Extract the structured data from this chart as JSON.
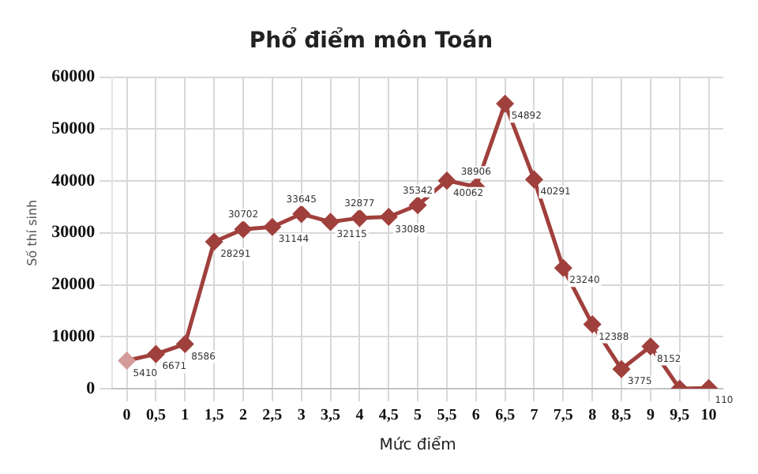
{
  "chart_data": {
    "type": "line",
    "title": "Phổ điểm môn Toán",
    "xlabel": "Mức điểm",
    "ylabel": "Số thí sinh",
    "categories": [
      "0",
      "0,5",
      "1",
      "1,5",
      "2",
      "2,5",
      "3",
      "3,5",
      "4",
      "4,5",
      "5",
      "5,5",
      "6",
      "6,5",
      "7",
      "7,5",
      "8",
      "8,5",
      "9",
      "9,5",
      "10"
    ],
    "series": [
      {
        "color": "#a0403c",
        "values": [
          5410,
          6671,
          8586,
          28291,
          30702,
          31144,
          33645,
          32115,
          32877,
          33088,
          35342,
          40062,
          38906,
          54892,
          40291,
          23240,
          12388,
          3775,
          8152,
          0,
          110
        ],
        "value_labels": [
          "5410",
          "6671",
          "8586",
          "28291",
          "30702",
          "31144",
          "33645",
          "32115",
          "32877",
          "33088",
          "35342",
          "40062",
          "38906",
          "54892",
          "40291",
          "23240",
          "12388",
          "3775",
          "8152",
          null,
          "110"
        ]
      }
    ],
    "ylim": [
      0,
      60000
    ],
    "yticks": [
      0,
      10000,
      20000,
      30000,
      40000,
      50000,
      60000
    ],
    "grid": true,
    "legend": false,
    "marker": "diamond",
    "line_style": "solid"
  }
}
